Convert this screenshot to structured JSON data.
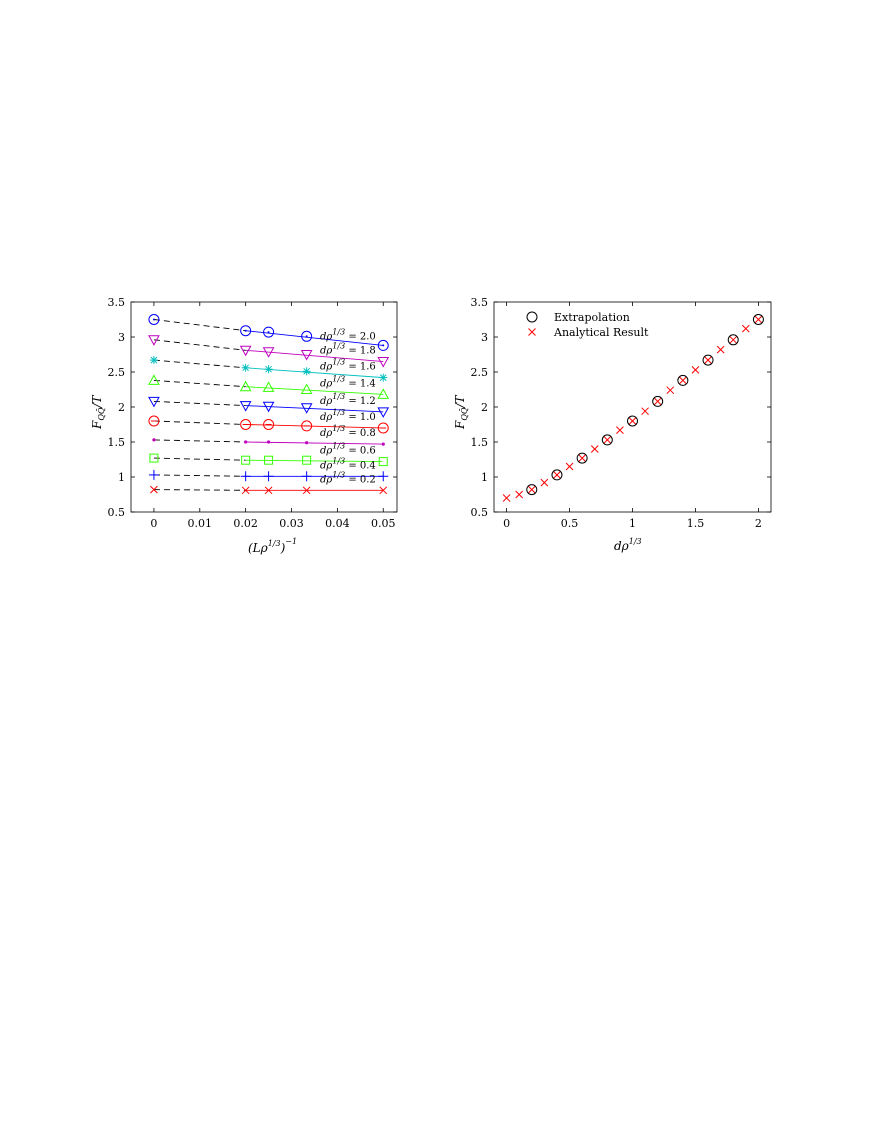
{
  "chart_data": [
    {
      "type": "line",
      "xlabel_main": "(Lρ",
      "xlabel_exp": "1/3",
      "xlabel_tail": ")",
      "xlabel_power": "−1",
      "ylabel_main": "F",
      "ylabel_sub": "QQ̄",
      "ylabel_tail": "/T",
      "xlim": [
        -0.005,
        0.053
      ],
      "ylim": [
        0.5,
        3.5
      ],
      "xticks": [
        0,
        0.01,
        0.02,
        0.03,
        0.04,
        0.05
      ],
      "xtick_labels": [
        "0",
        "0.01",
        "0.02",
        "0.03",
        "0.04",
        "0.05"
      ],
      "yticks": [
        0.5,
        1,
        1.5,
        2,
        2.5,
        3,
        3.5
      ],
      "ytick_labels": [
        "0.5",
        "1",
        "1.5",
        "2",
        "2.5",
        "3",
        "3.5"
      ],
      "grid": false,
      "x": [
        0.02,
        0.025,
        0.0333,
        0.05
      ],
      "series": [
        {
          "label_prefix": "dρ",
          "label_exp": "1/3",
          "label_value": " = 2.0",
          "color": "#0000ff",
          "marker": "circle-dot",
          "values": [
            3.09,
            3.07,
            3.01,
            2.88
          ],
          "extrapolated": 3.25
        },
        {
          "label_prefix": "dρ",
          "label_exp": "1/3",
          "label_value": " = 1.8",
          "color": "#bf00bf",
          "marker": "triangle-down",
          "values": [
            2.81,
            2.79,
            2.75,
            2.65
          ],
          "extrapolated": 2.96
        },
        {
          "label_prefix": "dρ",
          "label_exp": "1/3",
          "label_value": " = 1.6",
          "color": "#00bfbf",
          "marker": "star",
          "values": [
            2.56,
            2.54,
            2.51,
            2.42
          ],
          "extrapolated": 2.67
        },
        {
          "label_prefix": "dρ",
          "label_exp": "1/3",
          "label_value": " = 1.4",
          "color": "#33ff00",
          "marker": "triangle-up",
          "values": [
            2.29,
            2.28,
            2.25,
            2.18
          ],
          "extrapolated": 2.38
        },
        {
          "label_prefix": "dρ",
          "label_exp": "1/3",
          "label_value": " = 1.2",
          "color": "#0000ff",
          "marker": "triangle-down",
          "values": [
            2.02,
            2.01,
            1.99,
            1.93
          ],
          "extrapolated": 2.08
        },
        {
          "label_prefix": "dρ",
          "label_exp": "1/3",
          "label_value": " = 1.0",
          "color": "#ff0000",
          "marker": "circle-line",
          "values": [
            1.75,
            1.75,
            1.73,
            1.7
          ],
          "extrapolated": 1.8
        },
        {
          "label_prefix": "dρ",
          "label_exp": "1/3",
          "label_value": " = 0.8",
          "color": "#bf00bf",
          "marker": "point",
          "values": [
            1.5,
            1.5,
            1.49,
            1.47
          ],
          "extrapolated": 1.53
        },
        {
          "label_prefix": "dρ",
          "label_exp": "1/3",
          "label_value": " = 0.6",
          "color": "#33ff00",
          "marker": "square",
          "values": [
            1.24,
            1.24,
            1.24,
            1.22
          ],
          "extrapolated": 1.27
        },
        {
          "label_prefix": "dρ",
          "label_exp": "1/3",
          "label_value": " = 0.4",
          "color": "#0000ff",
          "marker": "plus",
          "values": [
            1.01,
            1.01,
            1.01,
            1.01
          ],
          "extrapolated": 1.03
        },
        {
          "label_prefix": "dρ",
          "label_exp": "1/3",
          "label_value": " = 0.2",
          "color": "#ff0000",
          "marker": "x",
          "values": [
            0.81,
            0.81,
            0.81,
            0.81
          ],
          "extrapolated": 0.82
        }
      ]
    },
    {
      "type": "scatter",
      "xlabel_main": "dρ",
      "xlabel_exp": "1/3",
      "ylabel_main": "F",
      "ylabel_sub": "QQ̄",
      "ylabel_tail": "/T",
      "xlim": [
        -0.1,
        2.1
      ],
      "ylim": [
        0.5,
        3.5
      ],
      "xticks": [
        0,
        0.5,
        1,
        1.5,
        2
      ],
      "xtick_labels": [
        "0",
        "0.5",
        "1",
        "1.5",
        "2"
      ],
      "yticks": [
        0.5,
        1,
        1.5,
        2,
        2.5,
        3,
        3.5
      ],
      "ytick_labels": [
        "0.5",
        "1",
        "1.5",
        "2",
        "2.5",
        "3",
        "3.5"
      ],
      "grid": false,
      "legend_position": "top-left",
      "series": [
        {
          "name": "Extrapolation",
          "color": "#000000",
          "marker": "circle",
          "x": [
            0.2,
            0.4,
            0.6,
            0.8,
            1.0,
            1.2,
            1.4,
            1.6,
            1.8,
            2.0
          ],
          "y": [
            0.82,
            1.03,
            1.27,
            1.53,
            1.8,
            2.08,
            2.38,
            2.67,
            2.96,
            3.25
          ]
        },
        {
          "name": "Analytical Result",
          "color": "#ff0000",
          "marker": "x",
          "x": [
            0,
            0.1,
            0.2,
            0.3,
            0.4,
            0.5,
            0.6,
            0.7,
            0.8,
            0.9,
            1.0,
            1.1,
            1.2,
            1.3,
            1.4,
            1.5,
            1.6,
            1.7,
            1.8,
            1.9,
            2.0
          ],
          "y": [
            0.7,
            0.75,
            0.82,
            0.92,
            1.03,
            1.15,
            1.27,
            1.4,
            1.53,
            1.67,
            1.8,
            1.94,
            2.08,
            2.24,
            2.38,
            2.53,
            2.67,
            2.82,
            2.96,
            3.12,
            3.25
          ]
        }
      ]
    }
  ]
}
